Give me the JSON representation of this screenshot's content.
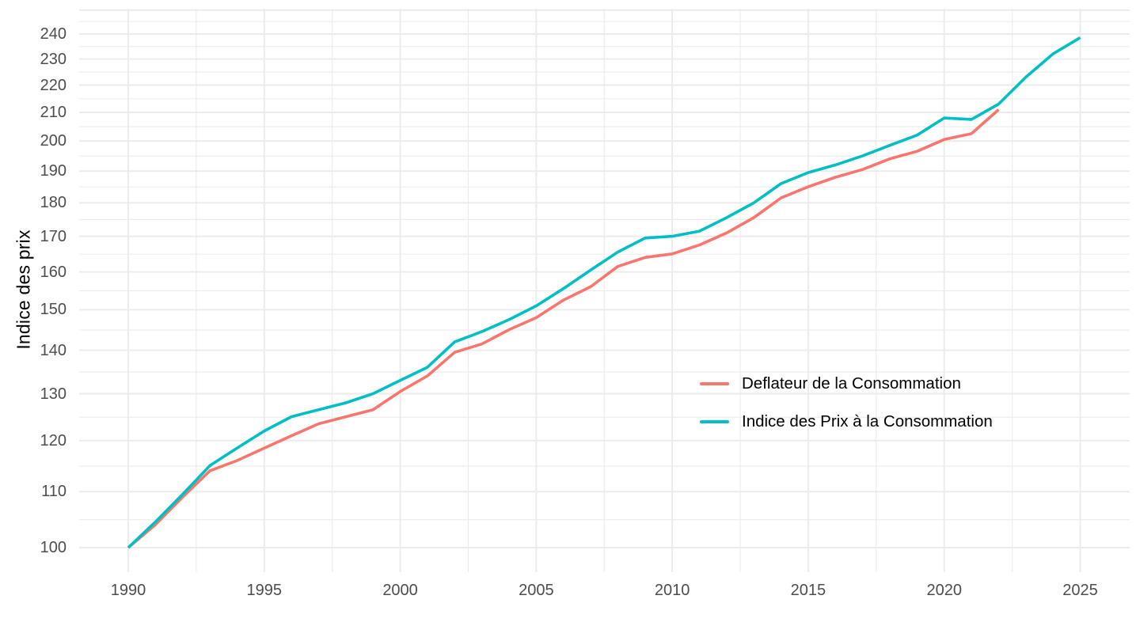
{
  "chart_data": {
    "type": "line",
    "title": "",
    "xlabel": "",
    "ylabel": "Indice des prix",
    "y_scale": "log",
    "xlim": [
      1988.25,
      2026.75
    ],
    "ylim": [
      95.7,
      250.9
    ],
    "grid": true,
    "grid_color": "#EBEBEB",
    "axis_text_color": "#4D4D4D",
    "background_color": "#FFFFFF",
    "legend_position": "inside-center-right",
    "x_ticks": [
      1990,
      1995,
      2000,
      2005,
      2010,
      2015,
      2020,
      2025
    ],
    "x_minor": [
      1992.5,
      1997.5,
      2002.5,
      2007.5,
      2012.5,
      2017.5,
      2022.5
    ],
    "y_ticks": [
      100,
      110,
      120,
      130,
      140,
      150,
      160,
      170,
      180,
      190,
      200,
      210,
      220,
      230,
      240
    ],
    "y_major_unlabeled": [
      250
    ],
    "y_minor": [
      104.88,
      114.89,
      124.9,
      134.91,
      144.91,
      154.92,
      164.92,
      174.93,
      184.93,
      194.94,
      204.94,
      214.94,
      224.94,
      234.95,
      245.15
    ],
    "series": [
      {
        "name": "Deflateur de la Consommation",
        "color": "#F8766D",
        "x": [
          1990,
          1991,
          1992,
          1993,
          1994,
          1995,
          1996,
          1997,
          1998,
          1999,
          2000,
          2001,
          2002,
          2003,
          2004,
          2005,
          2006,
          2007,
          2008,
          2009,
          2010,
          2011,
          2012,
          2013,
          2014,
          2015,
          2016,
          2017,
          2018,
          2019,
          2020,
          2021,
          2022
        ],
        "values": [
          100,
          104,
          109,
          114,
          116,
          118.5,
          121,
          123.5,
          125,
          126.5,
          130.5,
          134,
          139.5,
          141.5,
          145,
          148,
          152.5,
          156,
          161.5,
          164,
          165,
          167.5,
          171,
          175.5,
          181.5,
          185,
          188,
          190.5,
          194,
          196.5,
          200.5,
          202.5,
          211
        ]
      },
      {
        "name": "Indice des Prix à la Consommation",
        "color": "#00BFC4",
        "x": [
          1990,
          1991,
          1992,
          1993,
          1994,
          1995,
          1996,
          1997,
          1998,
          1999,
          2000,
          2001,
          2002,
          2003,
          2004,
          2005,
          2006,
          2007,
          2008,
          2009,
          2010,
          2011,
          2012,
          2013,
          2014,
          2015,
          2016,
          2017,
          2018,
          2019,
          2020,
          2021,
          2022,
          2023,
          2024,
          2025
        ],
        "values": [
          100,
          104.5,
          109.5,
          115,
          118.5,
          122,
          125,
          126.5,
          128,
          130,
          133,
          136,
          142,
          144.5,
          147.5,
          151,
          155.5,
          160.5,
          165.5,
          169.5,
          170,
          171.5,
          175.5,
          180,
          186,
          189.5,
          192,
          195,
          198.5,
          202,
          208,
          207.5,
          213,
          223,
          232,
          238.5
        ]
      }
    ]
  },
  "legend": {
    "items": [
      {
        "label": "Deflateur de la Consommation",
        "color": "#F8766D"
      },
      {
        "label": "Indice des Prix à la Consommation",
        "color": "#00BFC4"
      }
    ]
  }
}
